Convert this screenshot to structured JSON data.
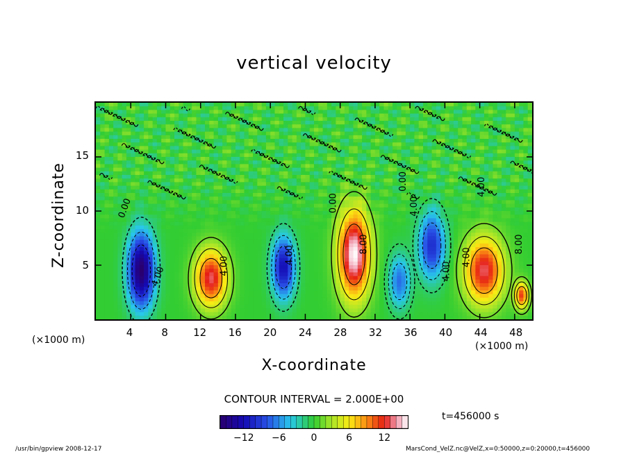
{
  "chart_data": {
    "type": "heatmap",
    "title": "vertical velocity",
    "xlabel": "X-coordinate",
    "ylabel": "Z-coordinate",
    "x_unit": "(×1000 m)",
    "y_unit": "(×1000 m)",
    "xlim": [
      0,
      50
    ],
    "ylim": [
      0,
      20
    ],
    "x_ticks": [
      4,
      8,
      12,
      16,
      20,
      24,
      28,
      32,
      36,
      40,
      44,
      48
    ],
    "y_ticks": [
      5,
      10,
      15
    ],
    "contour_interval_text": "CONTOUR INTERVAL = 2.000E+00",
    "time_text": "t=456000 s",
    "colorbar": {
      "ticks": [
        -12,
        -6,
        0,
        6,
        12
      ],
      "range": [
        -16,
        16
      ]
    },
    "contour_labels": [
      "0.00",
      "4.00",
      "8.00"
    ],
    "cells": [
      {
        "x": 5.2,
        "z": 4.5,
        "w": -16,
        "sx": 1.5,
        "sz": 3.4
      },
      {
        "x": 13.2,
        "z": 3.8,
        "w": 13,
        "sx": 1.8,
        "sz": 2.6
      },
      {
        "x": 21.5,
        "z": 4.8,
        "w": -12,
        "sx": 1.3,
        "sz": 2.8
      },
      {
        "x": 29.6,
        "z": 6.0,
        "w": 16,
        "sx": 1.8,
        "sz": 4.0
      },
      {
        "x": 34.8,
        "z": 3.5,
        "w": -7,
        "sx": 1.2,
        "sz": 2.4
      },
      {
        "x": 38.5,
        "z": 6.8,
        "w": -10,
        "sx": 1.5,
        "sz": 3.0
      },
      {
        "x": 44.5,
        "z": 4.5,
        "w": 13,
        "sx": 2.2,
        "sz": 3.0
      },
      {
        "x": 48.8,
        "z": 2.2,
        "w": 11,
        "sx": 0.8,
        "sz": 1.2
      }
    ]
  },
  "footer": {
    "left": "/usr/bin/gpview  2008-12-17",
    "right": "MarsCond_VelZ.nc@VelZ,x=0:50000,z=0:20000,t=456000"
  },
  "colors": {
    "background_field": "#33cc33",
    "positive_max": "#ffffff",
    "negative_max": "#2a006e"
  }
}
